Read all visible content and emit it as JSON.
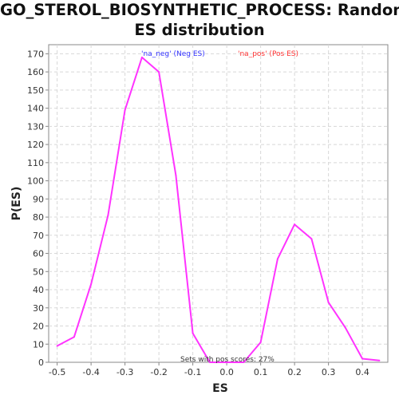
{
  "title_lines": [
    "GO_STEROL_BIOSYNTHETIC_PROCESS: Random",
    "ES distribution"
  ],
  "chart_data": {
    "type": "line",
    "xlabel": "ES",
    "ylabel": "P(ES)",
    "xlim": [
      -0.525,
      0.475
    ],
    "ylim": [
      0,
      175
    ],
    "xticks": [
      -0.5,
      -0.4,
      -0.3,
      -0.2,
      -0.1,
      0.0,
      0.1,
      0.2,
      0.3,
      0.4
    ],
    "xtick_labels": [
      "-0.5",
      "-0.4",
      "-0.3",
      "-0.2",
      "-0.1",
      "0.0",
      "0.1",
      "0.2",
      "0.3",
      "0.4"
    ],
    "yticks": [
      0,
      10,
      20,
      30,
      40,
      50,
      60,
      70,
      80,
      90,
      100,
      110,
      120,
      130,
      140,
      150,
      160,
      170
    ],
    "grid": true,
    "line_color": "#ff33ff",
    "series": [
      {
        "x": [
          -0.5,
          -0.45,
          -0.4,
          -0.35,
          -0.3,
          -0.25,
          -0.2,
          -0.15,
          -0.1,
          -0.05,
          0.0,
          0.05,
          0.1,
          0.15,
          0.2,
          0.25,
          0.3,
          0.35,
          0.4,
          0.45
        ],
        "y": [
          9,
          14,
          43,
          81,
          139,
          168,
          160,
          103,
          16,
          0,
          0,
          0,
          11,
          57,
          76,
          68,
          33,
          19,
          2,
          1
        ]
      }
    ],
    "annotations": [
      {
        "text": "'na_neg' (Neg ES)",
        "color": "#3333ff"
      },
      {
        "text": "'na_pos' (Pos ES)",
        "color": "#ff3333"
      },
      {
        "text": "Sets with pos scores: 27%",
        "color": "#333333"
      }
    ]
  }
}
